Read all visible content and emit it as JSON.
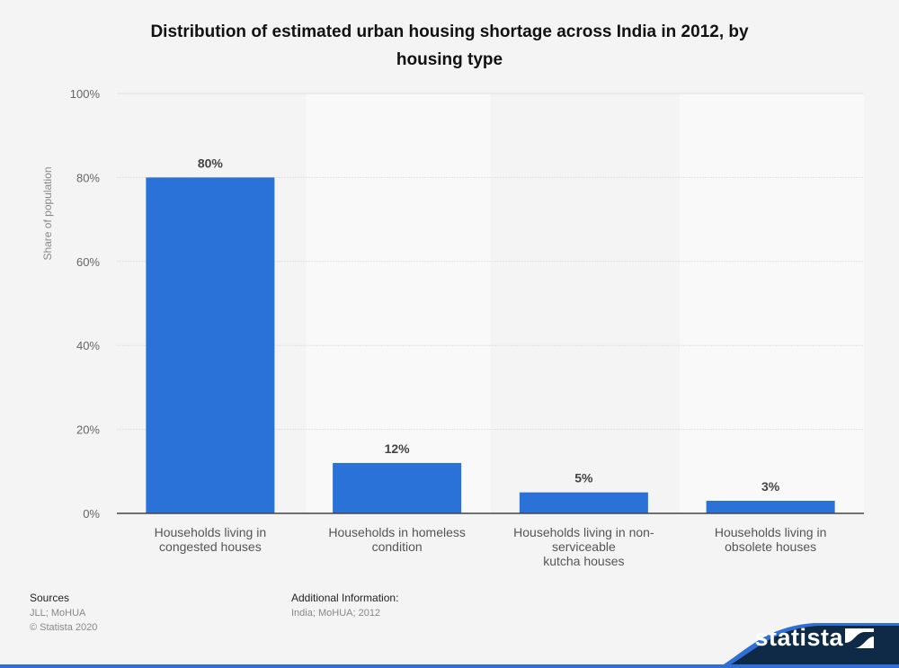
{
  "header": {
    "title_line1": "Distribution of estimated urban housing shortage across India in 2012, by",
    "title_line2": "housing type"
  },
  "chart_data": {
    "type": "bar",
    "title": "Distribution of estimated urban housing shortage across India in 2012, by housing type",
    "xlabel": "",
    "ylabel": "Share of population",
    "categories": [
      "Households living in congested houses",
      "Households in homeless condition",
      "Households living in non-serviceable kutcha houses",
      "Households living in obsolete houses"
    ],
    "category_lines": [
      [
        "Households living in",
        "congested houses"
      ],
      [
        "Households in homeless",
        "condition"
      ],
      [
        "Households living in non-",
        "serviceable",
        "kutcha houses"
      ],
      [
        "Households living in",
        "obsolete houses"
      ]
    ],
    "values": [
      80,
      12,
      5,
      3
    ],
    "value_labels": [
      "80%",
      "12%",
      "5%",
      "3%"
    ],
    "ylim": [
      0,
      100
    ],
    "yticks": [
      0,
      20,
      40,
      60,
      80,
      100
    ],
    "ytick_labels": [
      "0%",
      "20%",
      "40%",
      "60%",
      "80%",
      "100%"
    ],
    "grid": true,
    "legend": "none",
    "bar_color": "#2a72d8"
  },
  "footer": {
    "sources_heading": "Sources",
    "sources_text": "JLL; MoHUA",
    "copyright": "© Statista 2020",
    "additional_heading": "Additional Information:",
    "additional_text": "India; MoHUA; 2012",
    "logo_text": "statista"
  },
  "colors": {
    "accent": "#2e6fd8",
    "logo_bg": "#0e2a47"
  }
}
